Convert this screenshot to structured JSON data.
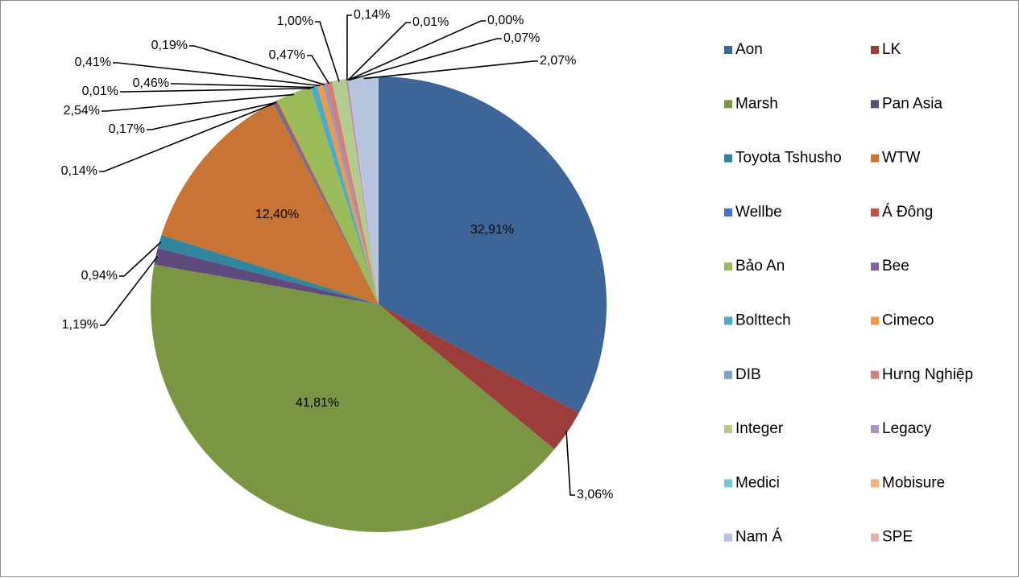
{
  "chart_data": {
    "type": "pie",
    "start_angle_deg": 0,
    "direction": "clockwise",
    "slices": [
      {
        "name": "Aon",
        "value": 32.91,
        "label": "32,91%",
        "color": "#3D6597"
      },
      {
        "name": "LK",
        "value": 3.06,
        "label": "3,06%",
        "color": "#9B3E3B"
      },
      {
        "name": "Marsh",
        "value": 41.81,
        "label": "41,81%",
        "color": "#7B9642"
      },
      {
        "name": "Pan Asia",
        "value": 1.19,
        "label": "1,19%",
        "color": "#5E4A7D"
      },
      {
        "name": "Toyota Tshusho",
        "value": 0.94,
        "label": "0,94%",
        "color": "#31859C"
      },
      {
        "name": "WTW",
        "value": 12.4,
        "label": "12,40%",
        "color": "#C77434"
      },
      {
        "name": "Wellbe",
        "value": 0.14,
        "label": "0,14%",
        "color": "#4472C4"
      },
      {
        "name": "Á Đông",
        "value": 0.17,
        "label": "0,17%",
        "color": "#C0504D"
      },
      {
        "name": "Bảo An",
        "value": 2.54,
        "label": "2,54%",
        "color": "#9BBB59"
      },
      {
        "name": "Bee",
        "value": 0.01,
        "label": "0,01%",
        "color": "#8064A2"
      },
      {
        "name": "Bolttech",
        "value": 0.46,
        "label": "0,46%",
        "color": "#4BACC6"
      },
      {
        "name": "Cimeco",
        "value": 0.41,
        "label": "0,41%",
        "color": "#F79646"
      },
      {
        "name": "DIB",
        "value": 0.19,
        "label": "0,19%",
        "color": "#7F9FCF"
      },
      {
        "name": "Hưng Nghiệp",
        "value": 0.47,
        "label": "0,47%",
        "color": "#D37F7D"
      },
      {
        "name": "Integer",
        "value": 1.0,
        "label": "1,00%",
        "color": "#B3CC8D"
      },
      {
        "name": "Legacy",
        "value": 0.14,
        "label": "0,14%",
        "color": "#A793C4"
      },
      {
        "name": "Medici",
        "value": 0.01,
        "label": "0,01%",
        "color": "#7CC3D6"
      },
      {
        "name": "Mobisure",
        "value": 0.0,
        "label": "0,00%",
        "color": "#F9AF79"
      },
      {
        "name": "SPE",
        "value": 0.07,
        "label": "0,07%",
        "color": "#E3B1B0"
      },
      {
        "name": "Nam Á",
        "value": 2.07,
        "label": "2,07%",
        "color": "#B7C4E0"
      }
    ],
    "legend": {
      "placement": "right",
      "columns": [
        [
          "Aon",
          "Marsh",
          "Toyota Tshusho",
          "Wellbe",
          "Bảo An",
          "Bolttech",
          "DIB",
          "Integer",
          "Medici",
          "Nam Á"
        ],
        [
          "LK",
          "Pan Asia",
          "WTW",
          "Á Đông",
          "Bee",
          "Cimeco",
          "Hưng Nghiệp",
          "Legacy",
          "Mobisure",
          "SPE"
        ]
      ]
    }
  }
}
